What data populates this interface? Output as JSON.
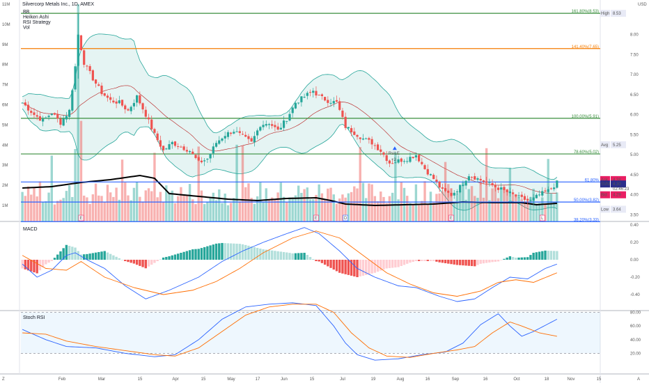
{
  "header": {
    "title": "Silvercorp Metals Inc., 1D, AMEX",
    "indicators": [
      "BB",
      "Heiken Ashi",
      "RSI Strategy",
      "Vol"
    ],
    "currency": "USD"
  },
  "price_axis": {
    "ticks": [
      "8.00",
      "7.50",
      "7.00",
      "6.50",
      "6.00",
      "5.50",
      "5.00",
      "4.50",
      "4.00",
      "3.50"
    ]
  },
  "volume_axis": {
    "ticks": [
      "11M",
      "10M",
      "9M",
      "8M",
      "7M",
      "6M",
      "5M",
      "4M",
      "3M",
      "2M",
      "1M"
    ]
  },
  "price_labels": {
    "high": {
      "label": "High",
      "value": "8.53"
    },
    "avg": {
      "label": "Avg",
      "value": "5.25"
    },
    "low": {
      "label": "Low",
      "value": "3.64"
    },
    "ask": {
      "label": "Ask",
      "value": "4.38"
    },
    "svm": {
      "label": "SVM",
      "value": "4.30",
      "countdown": "02:46:23"
    },
    "bid": {
      "label": "Bid",
      "value": "4.29"
    }
  },
  "fib_levels": [
    {
      "label": "161.80%(8.53)",
      "price": 8.53,
      "color": "#388e3c"
    },
    {
      "label": "141.40%(7.65)",
      "price": 7.65,
      "color": "#f57c00"
    },
    {
      "label": "100.00%(5.91)",
      "price": 5.91,
      "color": "#388e3c"
    },
    {
      "label": "78.60%(5.02)",
      "price": 5.02,
      "color": "#388e3c"
    },
    {
      "label": "61.80%",
      "price": 4.32,
      "color": "#2962ff"
    },
    {
      "label": "50.00%(3.82)",
      "price": 3.82,
      "color": "#2962ff"
    },
    {
      "label": "38.20%(3.33)",
      "price": 3.33,
      "color": "#2962ff"
    }
  ],
  "signal": {
    "label": "RsiLE",
    "sub": "+2"
  },
  "macd": {
    "title": "MACD",
    "ticks": [
      "0.40",
      "0.20",
      "0.00",
      "-0.20",
      "-0.40"
    ]
  },
  "stoch": {
    "title": "Stoch RSI",
    "ticks": [
      "80.00",
      "60.00",
      "40.00",
      "20.00"
    ]
  },
  "time_axis": {
    "labels": [
      "Feb",
      "Mar",
      "15",
      "Apr",
      "15",
      "May",
      "17",
      "Jun",
      "15",
      "Jul",
      "19",
      "Aug",
      "16",
      "Sep",
      "16",
      "Oct",
      "18",
      "Nov",
      "15"
    ],
    "z_label": "Z",
    "a_label": "A"
  },
  "event_markers": [
    "E",
    "E",
    "D",
    "E",
    "L"
  ],
  "colors": {
    "up": "#26a69a",
    "down": "#ef5350",
    "bb": "#26a69a",
    "ma": "#ef5350",
    "macd_line": "#2962ff",
    "signal_line": "#ff6d00",
    "vol_ma": "#000000"
  },
  "chart_data": {
    "type": "line",
    "title": "Silvercorp Metals Inc., 1D, AMEX",
    "price_anchors": [
      [
        0,
        6.3
      ],
      [
        4,
        6.0
      ],
      [
        7,
        5.85
      ],
      [
        10,
        6.05
      ],
      [
        13,
        5.8
      ],
      [
        16,
        6.1
      ],
      [
        18,
        7.2
      ],
      [
        19,
        8.0
      ],
      [
        21,
        7.3
      ],
      [
        24,
        6.9
      ],
      [
        27,
        6.55
      ],
      [
        30,
        6.35
      ],
      [
        33,
        6.3
      ],
      [
        36,
        6.1
      ],
      [
        39,
        6.45
      ],
      [
        42,
        6.0
      ],
      [
        45,
        5.5
      ],
      [
        48,
        5.1
      ],
      [
        51,
        5.3
      ],
      [
        54,
        5.2
      ],
      [
        57,
        5.1
      ],
      [
        60,
        4.8
      ],
      [
        63,
        4.9
      ],
      [
        66,
        5.3
      ],
      [
        69,
        5.5
      ],
      [
        72,
        5.6
      ],
      [
        75,
        5.45
      ],
      [
        78,
        5.3
      ],
      [
        81,
        5.75
      ],
      [
        84,
        5.8
      ],
      [
        87,
        5.6
      ],
      [
        90,
        5.9
      ],
      [
        93,
        6.3
      ],
      [
        96,
        6.45
      ],
      [
        99,
        6.6
      ],
      [
        101,
        6.45
      ],
      [
        104,
        6.35
      ],
      [
        107,
        6.3
      ],
      [
        110,
        5.7
      ],
      [
        113,
        5.55
      ],
      [
        116,
        5.4
      ],
      [
        119,
        5.3
      ],
      [
        122,
        5.1
      ],
      [
        125,
        4.8
      ],
      [
        128,
        4.85
      ],
      [
        131,
        4.9
      ],
      [
        134,
        5.0
      ],
      [
        137,
        4.65
      ],
      [
        140,
        4.4
      ],
      [
        143,
        4.1
      ],
      [
        146,
        4.0
      ],
      [
        149,
        4.2
      ],
      [
        152,
        4.5
      ],
      [
        155,
        4.4
      ],
      [
        158,
        4.3
      ],
      [
        161,
        4.2
      ],
      [
        164,
        4.1
      ],
      [
        167,
        4.0
      ],
      [
        170,
        3.9
      ],
      [
        173,
        3.85
      ],
      [
        176,
        4.0
      ],
      [
        179,
        4.1
      ],
      [
        182,
        4.3
      ]
    ],
    "macd_anchors": {
      "macd": [
        [
          0,
          -0.05
        ],
        [
          5,
          -0.2
        ],
        [
          10,
          -0.12
        ],
        [
          15,
          0.05
        ],
        [
          18,
          0.08
        ],
        [
          22,
          0.0
        ],
        [
          28,
          -0.1
        ],
        [
          35,
          -0.3
        ],
        [
          42,
          -0.45
        ],
        [
          50,
          -0.35
        ],
        [
          60,
          -0.2
        ],
        [
          68,
          -0.02
        ],
        [
          75,
          0.1
        ],
        [
          82,
          0.2
        ],
        [
          90,
          0.3
        ],
        [
          96,
          0.37
        ],
        [
          101,
          0.3
        ],
        [
          108,
          0.1
        ],
        [
          114,
          -0.1
        ],
        [
          120,
          -0.2
        ],
        [
          128,
          -0.3
        ],
        [
          134,
          -0.32
        ],
        [
          142,
          -0.42
        ],
        [
          148,
          -0.48
        ],
        [
          154,
          -0.45
        ],
        [
          160,
          -0.32
        ],
        [
          166,
          -0.2
        ],
        [
          172,
          -0.22
        ],
        [
          178,
          -0.1
        ],
        [
          182,
          -0.05
        ]
      ],
      "signal": [
        [
          0,
          0.05
        ],
        [
          8,
          -0.1
        ],
        [
          15,
          -0.12
        ],
        [
          20,
          -0.02
        ],
        [
          28,
          -0.2
        ],
        [
          38,
          -0.32
        ],
        [
          48,
          -0.4
        ],
        [
          58,
          -0.35
        ],
        [
          66,
          -0.25
        ],
        [
          74,
          -0.1
        ],
        [
          82,
          0.08
        ],
        [
          92,
          0.25
        ],
        [
          100,
          0.33
        ],
        [
          108,
          0.25
        ],
        [
          116,
          0.05
        ],
        [
          124,
          -0.15
        ],
        [
          132,
          -0.28
        ],
        [
          140,
          -0.38
        ],
        [
          148,
          -0.42
        ],
        [
          156,
          -0.36
        ],
        [
          162,
          -0.26
        ],
        [
          168,
          -0.23
        ],
        [
          174,
          -0.26
        ],
        [
          182,
          -0.15
        ]
      ]
    },
    "stoch_anchors": {
      "k": [
        [
          0,
          55
        ],
        [
          8,
          40
        ],
        [
          15,
          30
        ],
        [
          25,
          28
        ],
        [
          35,
          20
        ],
        [
          45,
          15
        ],
        [
          52,
          18
        ],
        [
          60,
          40
        ],
        [
          68,
          70
        ],
        [
          76,
          88
        ],
        [
          84,
          92
        ],
        [
          92,
          94
        ],
        [
          100,
          90
        ],
        [
          106,
          60
        ],
        [
          110,
          35
        ],
        [
          114,
          18
        ],
        [
          120,
          10
        ],
        [
          128,
          12
        ],
        [
          136,
          18
        ],
        [
          144,
          22
        ],
        [
          150,
          35
        ],
        [
          156,
          62
        ],
        [
          162,
          78
        ],
        [
          166,
          60
        ],
        [
          170,
          45
        ],
        [
          174,
          52
        ],
        [
          182,
          70
        ]
      ],
      "d": [
        [
          0,
          50
        ],
        [
          8,
          48
        ],
        [
          15,
          38
        ],
        [
          25,
          30
        ],
        [
          35,
          24
        ],
        [
          45,
          18
        ],
        [
          52,
          16
        ],
        [
          60,
          28
        ],
        [
          68,
          52
        ],
        [
          76,
          76
        ],
        [
          84,
          88
        ],
        [
          92,
          92
        ],
        [
          100,
          92
        ],
        [
          106,
          80
        ],
        [
          112,
          50
        ],
        [
          118,
          28
        ],
        [
          124,
          16
        ],
        [
          132,
          14
        ],
        [
          140,
          20
        ],
        [
          148,
          25
        ],
        [
          154,
          30
        ],
        [
          160,
          50
        ],
        [
          166,
          66
        ],
        [
          170,
          60
        ],
        [
          176,
          50
        ],
        [
          182,
          45
        ]
      ]
    }
  }
}
